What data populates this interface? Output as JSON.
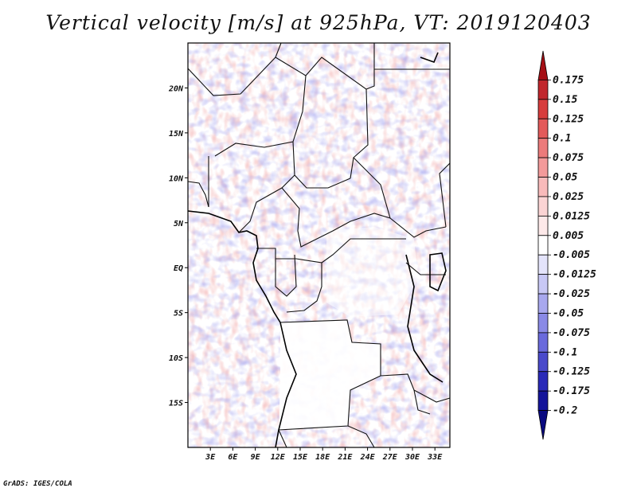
{
  "title": "Vertical velocity [m/s] at 925hPa, VT: 2019120403",
  "footer": "GrADS: IGES/COLA",
  "map": {
    "lon_range": [
      0,
      35
    ],
    "lat_range": [
      -20,
      25
    ],
    "lon_ticks": [
      "3E",
      "6E",
      "9E",
      "12E",
      "15E",
      "18E",
      "21E",
      "24E",
      "27E",
      "30E",
      "33E"
    ],
    "lon_tick_values": [
      3,
      6,
      9,
      12,
      15,
      18,
      21,
      24,
      27,
      30,
      33
    ],
    "lat_ticks": [
      "20N",
      "15N",
      "10N",
      "5N",
      "EQ",
      "5S",
      "10S",
      "15S"
    ],
    "lat_tick_values": [
      20,
      15,
      10,
      5,
      0,
      -5,
      -10,
      -15
    ]
  },
  "colorbar": {
    "labels": [
      "0.175",
      "0.15",
      "0.125",
      "0.1",
      "0.075",
      "0.05",
      "0.025",
      "0.0125",
      "0.005",
      "-0.005",
      "-0.0125",
      "-0.025",
      "-0.05",
      "-0.075",
      "-0.1",
      "-0.125",
      "-0.175",
      "-0.2"
    ],
    "colors": [
      "#a50f15",
      "#c1272d",
      "#d73d3d",
      "#e35a5a",
      "#ec7b7b",
      "#f39a9a",
      "#f8baba",
      "#fbd4d4",
      "#fde9e9",
      "#ffffff",
      "#e4e4fb",
      "#c8c8f5",
      "#a8a8ee",
      "#8a8ae6",
      "#6a6adc",
      "#4a4acb",
      "#2a2ab8",
      "#14149a",
      "#0a0a80"
    ]
  },
  "colors": {
    "positive": "#e06060",
    "negative": "#6a6adc",
    "border": "#111111"
  }
}
